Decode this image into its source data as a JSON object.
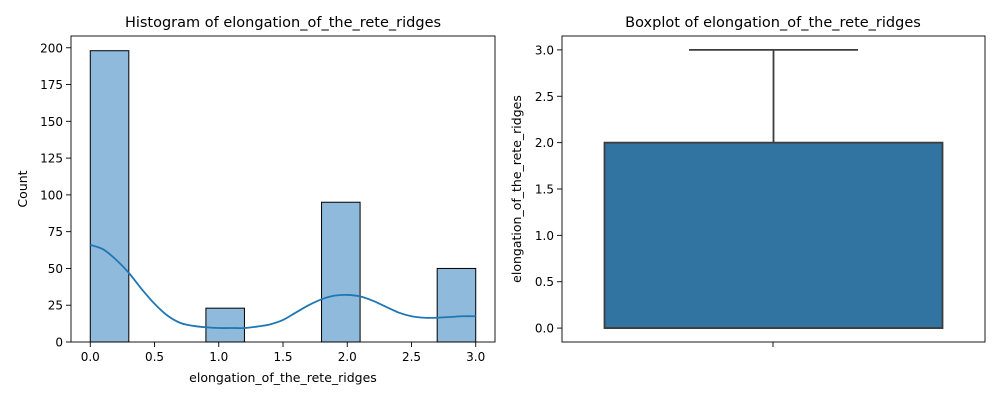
{
  "chart_data": [
    {
      "type": "bar",
      "title": "Histogram of elongation_of_the_rete_ridges",
      "xlabel": "elongation_of_the_rete_ridges",
      "ylabel": "Count",
      "xlim": [
        -0.15,
        3.15
      ],
      "ylim": [
        0,
        208
      ],
      "xticks": [
        "0.0",
        "0.5",
        "1.0",
        "1.5",
        "2.0",
        "2.5",
        "3.0"
      ],
      "yticks": [
        "0",
        "25",
        "50",
        "75",
        "100",
        "125",
        "150",
        "175",
        "200"
      ],
      "bin_width": 0.3,
      "bins": [
        {
          "start": 0.0,
          "count": 198
        },
        {
          "start": 0.3,
          "count": 0
        },
        {
          "start": 0.6,
          "count": 0
        },
        {
          "start": 0.9,
          "count": 23
        },
        {
          "start": 1.2,
          "count": 0
        },
        {
          "start": 1.5,
          "count": 0
        },
        {
          "start": 1.8,
          "count": 95
        },
        {
          "start": 2.1,
          "count": 0
        },
        {
          "start": 2.4,
          "count": 0
        },
        {
          "start": 2.7,
          "count": 50
        }
      ],
      "kde": [
        [
          0.0,
          66
        ],
        [
          0.1,
          63
        ],
        [
          0.2,
          56
        ],
        [
          0.3,
          47
        ],
        [
          0.4,
          36
        ],
        [
          0.5,
          26
        ],
        [
          0.6,
          18
        ],
        [
          0.7,
          13
        ],
        [
          0.8,
          11
        ],
        [
          0.9,
          10
        ],
        [
          1.0,
          9.5
        ],
        [
          1.1,
          9.5
        ],
        [
          1.2,
          9.5
        ],
        [
          1.3,
          10.5
        ],
        [
          1.4,
          12
        ],
        [
          1.5,
          15
        ],
        [
          1.6,
          20
        ],
        [
          1.7,
          25
        ],
        [
          1.8,
          29
        ],
        [
          1.9,
          31.5
        ],
        [
          2.0,
          32
        ],
        [
          2.1,
          31
        ],
        [
          2.2,
          28
        ],
        [
          2.3,
          24
        ],
        [
          2.4,
          20
        ],
        [
          2.5,
          17.5
        ],
        [
          2.6,
          16.5
        ],
        [
          2.7,
          16.5
        ],
        [
          2.8,
          17
        ],
        [
          2.9,
          17.5
        ],
        [
          3.0,
          17.5
        ]
      ],
      "colors": {
        "bar": "#8fbadb",
        "kde": "#1f77b4"
      }
    },
    {
      "type": "box",
      "title": "Boxplot of elongation_of_the_rete_ridges",
      "ylabel": "elongation_of_the_rete_ridges",
      "ylim": [
        -0.15,
        3.15
      ],
      "yticks": [
        "0.0",
        "0.5",
        "1.0",
        "1.5",
        "2.0",
        "2.5",
        "3.0"
      ],
      "box": {
        "min": 0.0,
        "q1": 0.0,
        "median": 0.0,
        "q3": 2.0,
        "max": 3.0
      },
      "colors": {
        "box": "#3274a1",
        "line": "#3d3d3d"
      }
    }
  ]
}
